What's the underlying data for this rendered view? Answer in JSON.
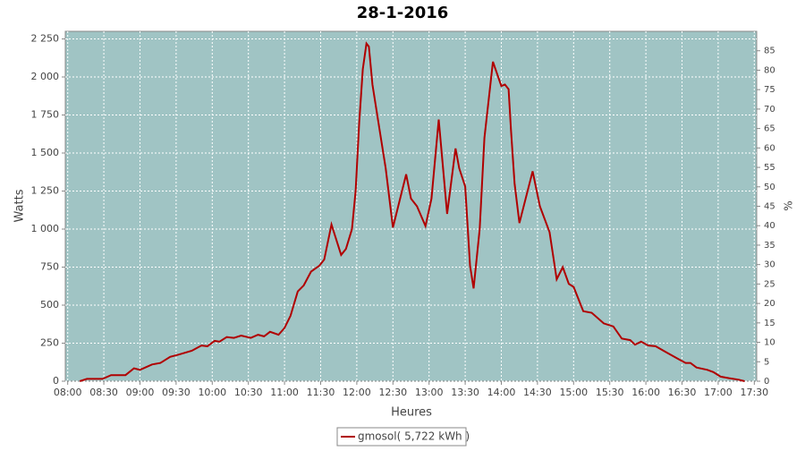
{
  "chart_data": {
    "type": "line",
    "title": "28-1-2016",
    "x_label": "Heures",
    "y_label": "Watts",
    "y2_label": "%",
    "xlim": [
      "07:58",
      "17:32"
    ],
    "xticks": [
      "08:00",
      "08:30",
      "09:00",
      "09:30",
      "10:00",
      "10:30",
      "11:00",
      "11:30",
      "12:00",
      "12:30",
      "13:00",
      "13:30",
      "14:00",
      "14:30",
      "15:00",
      "15:30",
      "16:00",
      "16:30",
      "17:00",
      "17:30"
    ],
    "ylim": [
      0,
      2300
    ],
    "yticks": [
      0,
      250,
      500,
      750,
      {
        "value": 1000,
        "label": "1 000"
      },
      {
        "value": 1250,
        "label": "1 250"
      },
      {
        "value": 1500,
        "label": "1 500"
      },
      {
        "value": 1750,
        "label": "1 750"
      },
      {
        "value": 2000,
        "label": "2 000"
      },
      {
        "value": 2250,
        "label": "2 250"
      }
    ],
    "y2lim": [
      0,
      90
    ],
    "y2ticks": [
      0,
      5,
      10,
      15,
      20,
      25,
      30,
      35,
      40,
      45,
      50,
      55,
      60,
      65,
      70,
      75,
      80,
      85
    ],
    "grid": true,
    "legend": "bottom",
    "x": [
      "08:10",
      "08:16",
      "08:29",
      "08:36",
      "08:48",
      "08:55",
      "09:00",
      "09:10",
      "09:17",
      "09:25",
      "09:32",
      "09:43",
      "09:51",
      "09:56",
      "10:02",
      "10:06",
      "10:12",
      "10:18",
      "10:24",
      "10:32",
      "10:38",
      "10:43",
      "10:48",
      "10:55",
      "11:00",
      "11:05",
      "11:11",
      "11:16",
      "11:22",
      "11:29",
      "11:33",
      "11:39",
      "11:47",
      "11:51",
      "11:56",
      "11:59",
      "12:02",
      "12:05",
      "12:08",
      "12:10",
      "12:13",
      "12:18",
      "12:24",
      "12:30",
      "12:41",
      "12:45",
      "12:50",
      "12:57",
      "13:02",
      "13:08",
      "13:15",
      "13:22",
      "13:25",
      "13:30",
      "13:34",
      "13:37",
      "13:42",
      "13:46",
      "13:53",
      "14:00",
      "14:03",
      "14:06",
      "14:08",
      "14:11",
      "14:15",
      "14:26",
      "14:32",
      "14:40",
      "14:46",
      "14:51",
      "14:56",
      "15:00",
      "15:08",
      "15:15",
      "15:25",
      "15:33",
      "15:40",
      "15:47",
      "15:51",
      "15:56",
      "16:02",
      "16:08",
      "16:17",
      "16:26",
      "16:33",
      "16:37",
      "16:42",
      "16:51",
      "16:56",
      "17:02",
      "17:09",
      "17:17",
      "17:22"
    ],
    "series": [
      {
        "name": "gmosol( 5,722 kWh )",
        "color": "#b00000",
        "values": [
          0,
          15,
          15,
          40,
          40,
          85,
          75,
          110,
          120,
          160,
          175,
          200,
          235,
          230,
          265,
          260,
          290,
          285,
          300,
          285,
          305,
          295,
          325,
          305,
          350,
          430,
          590,
          630,
          720,
          760,
          800,
          1030,
          830,
          870,
          1000,
          1250,
          1700,
          2050,
          2220,
          2200,
          1950,
          1700,
          1400,
          1010,
          1360,
          1200,
          1150,
          1020,
          1200,
          1720,
          1100,
          1530,
          1400,
          1280,
          760,
          610,
          1000,
          1600,
          2100,
          1940,
          1950,
          1920,
          1650,
          1300,
          1040,
          1380,
          1150,
          980,
          670,
          750,
          640,
          620,
          460,
          450,
          380,
          360,
          280,
          270,
          240,
          260,
          235,
          230,
          190,
          150,
          120,
          120,
          90,
          75,
          60,
          30,
          20,
          10,
          0
        ]
      }
    ]
  }
}
